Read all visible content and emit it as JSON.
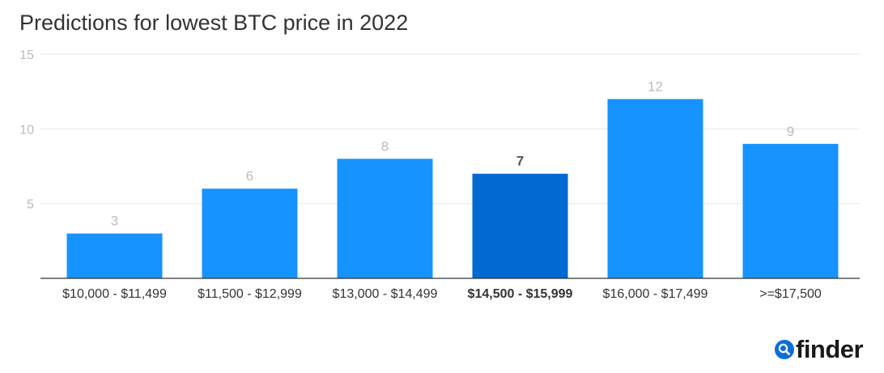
{
  "chart_data": {
    "type": "bar",
    "title": "Predictions for lowest BTC price in 2022",
    "categories": [
      "$10,000 - $11,499",
      "$11,500 - $12,999",
      "$13,000 - $14,499",
      "$14,500 - $15,999",
      "$16,000 - $17,499",
      ">=$17,500"
    ],
    "values": [
      3,
      6,
      8,
      7,
      12,
      9
    ],
    "highlighted_category": "$14,500 - $15,999",
    "yticks": [
      5,
      10,
      15
    ],
    "ylim": [
      0,
      15
    ],
    "grid": true,
    "legend": "none",
    "colors": {
      "bar": "#1793ff",
      "highlight": "#0069d2",
      "label": "#bbbbbb",
      "highlight_label": "#555555",
      "grid": "#e6e6e6"
    }
  },
  "brand": {
    "name": "finder",
    "icon": "search-icon"
  }
}
